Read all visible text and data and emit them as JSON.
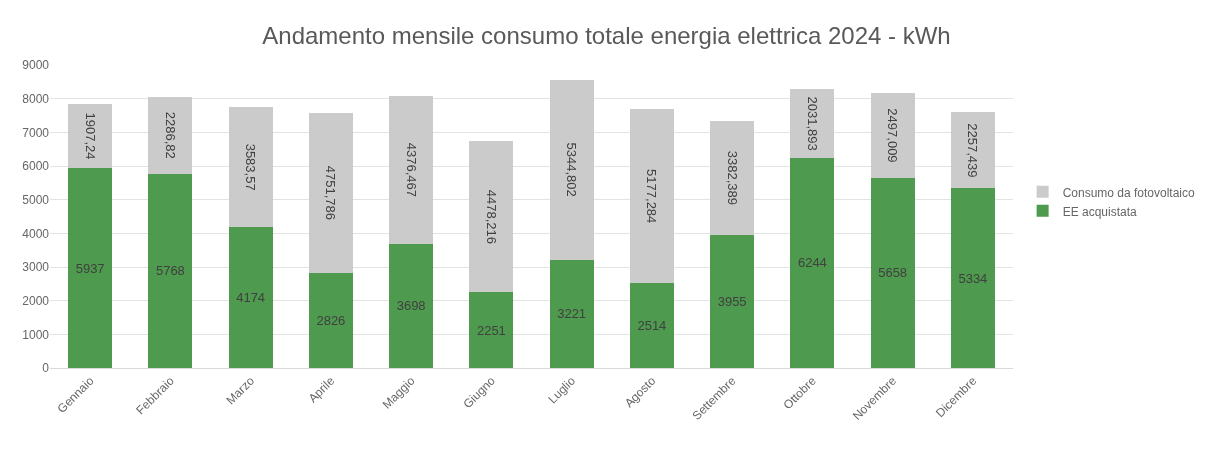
{
  "chart_data": {
    "type": "bar",
    "title": "Andamento mensile consumo totale energia elettrica 2024 - kWh",
    "stacked": true,
    "categories": [
      "Gennaio",
      "Febbraio",
      "Marzo",
      "Aprile",
      "Maggio",
      "Giugno",
      "Luglio",
      "Agosto",
      "Settembre",
      "Ottobre",
      "Novembre",
      "Dicembre"
    ],
    "series": [
      {
        "name": "EE acquistata",
        "color": "#4e9a4e",
        "values": [
          5937,
          5768,
          4174,
          2826,
          3698,
          2251,
          3221,
          2514,
          3955,
          6244,
          5658,
          5334
        ],
        "value_labels": [
          "5937",
          "5768",
          "4174",
          "2826",
          "3698",
          "2251",
          "3221",
          "2514",
          "3955",
          "6244",
          "5658",
          "5334"
        ]
      },
      {
        "name": "Consumo da fotovoltaico",
        "color": "#cbcbcb",
        "values": [
          1907.24,
          2286.82,
          3583.57,
          4751.786,
          4376.467,
          4478.216,
          5344.802,
          5177.284,
          3382.389,
          2031.893,
          2497.009,
          2257.439
        ],
        "value_labels": [
          "1907,24",
          "2286,82",
          "3583,57",
          "4751,786",
          "4376,467",
          "4478,216",
          "5344,802",
          "5177,284",
          "3382,389",
          "2031,893",
          "2497,009",
          "2257,439"
        ]
      }
    ],
    "ylim": [
      0,
      9000
    ],
    "yticks": [
      0,
      1000,
      2000,
      3000,
      4000,
      5000,
      6000,
      7000,
      8000,
      9000
    ],
    "grid": "y",
    "legend": "right"
  }
}
